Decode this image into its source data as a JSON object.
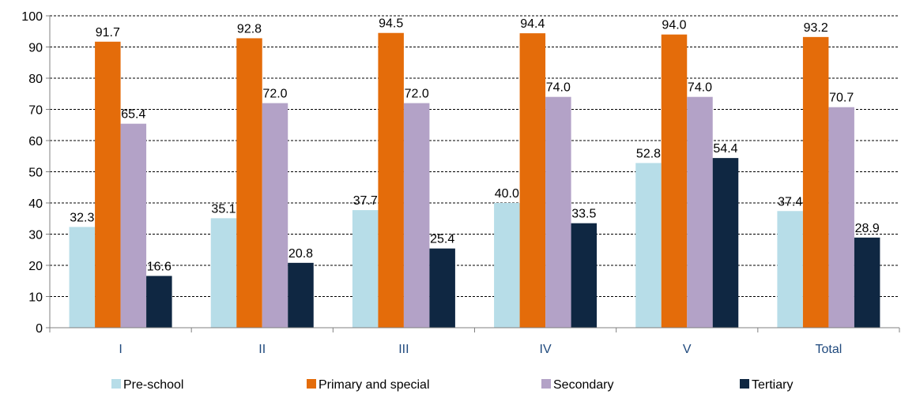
{
  "chart_data": {
    "type": "bar",
    "categories": [
      "I",
      "II",
      "III",
      "IV",
      "V",
      "Total"
    ],
    "series": [
      {
        "name": "Pre-school",
        "color": "#b7dde8",
        "values": [
          32.3,
          35.1,
          37.7,
          40.0,
          52.8,
          37.4
        ],
        "labels": [
          "32.3",
          "35.1",
          "37.7",
          "40.0",
          "52.8",
          "37.4"
        ]
      },
      {
        "name": "Primary and special",
        "color": "#e46c0a",
        "values": [
          91.7,
          92.8,
          94.5,
          94.4,
          94.0,
          93.2
        ],
        "labels": [
          "91.7",
          "92.8",
          "94.5",
          "94.4",
          "94.0",
          "93.2"
        ]
      },
      {
        "name": "Secondary",
        "color": "#b3a2c7",
        "values": [
          65.4,
          72.0,
          72.0,
          74.0,
          74.0,
          70.7
        ],
        "labels": [
          "65.4",
          "72.0",
          "72.0",
          "74.0",
          "74.0",
          "70.7"
        ]
      },
      {
        "name": "Tertiary",
        "color": "#0f2742",
        "values": [
          16.6,
          20.8,
          25.4,
          33.5,
          54.4,
          28.9
        ],
        "labels": [
          "16.6",
          "20.8",
          "25.4",
          "33.5",
          "54.4",
          "28.9"
        ]
      }
    ],
    "yticks": [
      "0",
      "10",
      "20",
      "30",
      "40",
      "50",
      "60",
      "70",
      "80",
      "90",
      "100"
    ],
    "ylim": [
      0,
      100
    ],
    "grid": "horizontal dashed",
    "legend_position": "bottom"
  }
}
